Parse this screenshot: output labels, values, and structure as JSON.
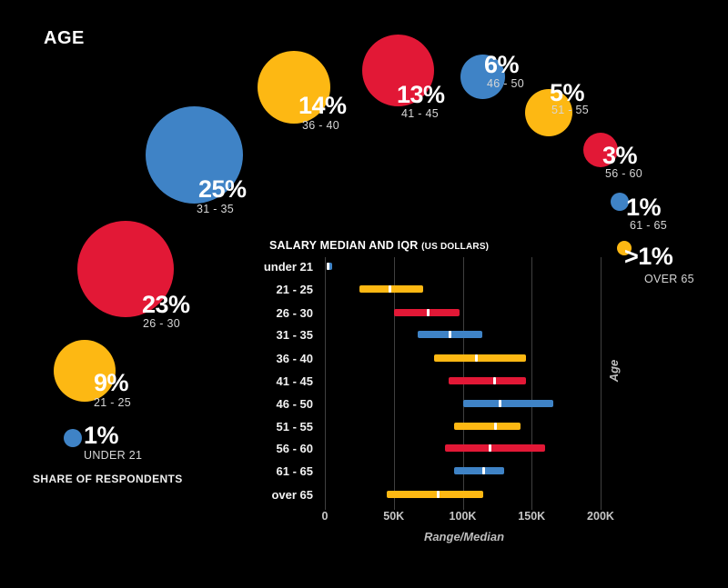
{
  "colors": {
    "background": "#000000",
    "blue": "#3F83C6",
    "yellow": "#FDB813",
    "red": "#E21836",
    "grid": "#404040",
    "median_tick": "#FFFFFF"
  },
  "chart_data": [
    {
      "type": "bubble",
      "title": "AGE",
      "note": "SHARE OF RESPONDENTS",
      "items": [
        {
          "label": "1%",
          "range": "UNDER 21",
          "value_pct": 1,
          "color": "blue"
        },
        {
          "label": "9%",
          "range": "21 - 25",
          "value_pct": 9,
          "color": "yellow"
        },
        {
          "label": "23%",
          "range": "26 - 30",
          "value_pct": 23,
          "color": "red"
        },
        {
          "label": "25%",
          "range": "31 - 35",
          "value_pct": 25,
          "color": "blue"
        },
        {
          "label": "14%",
          "range": "36 - 40",
          "value_pct": 14,
          "color": "yellow"
        },
        {
          "label": "13%",
          "range": "41 - 45",
          "value_pct": 13,
          "color": "red"
        },
        {
          "label": "6%",
          "range": "46 - 50",
          "value_pct": 6,
          "color": "blue"
        },
        {
          "label": "5%",
          "range": "51 - 55",
          "value_pct": 5,
          "color": "yellow"
        },
        {
          "label": "3%",
          "range": "56 - 60",
          "value_pct": 3,
          "color": "red"
        },
        {
          "label": "1%",
          "range": "61 - 65",
          "value_pct": 1,
          "color": "blue"
        },
        {
          "label": ">1%",
          "range": "OVER 65",
          "value_pct": 0.5,
          "color": "yellow"
        }
      ]
    },
    {
      "type": "bar",
      "subtype": "horizontal-range-median",
      "title": "SALARY MEDIAN AND IQR",
      "subtitle": "(US DOLLARS)",
      "xlabel": "Range/Median",
      "ylabel": "Age",
      "xlim": [
        0,
        200000
      ],
      "grid": true,
      "x_ticks": [
        {
          "label": "0",
          "value": 0
        },
        {
          "label": "50K",
          "value": 50000
        },
        {
          "label": "100K",
          "value": 100000
        },
        {
          "label": "150K",
          "value": 150000
        },
        {
          "label": "200K",
          "value": 200000
        }
      ],
      "rows": [
        {
          "category": "under 21",
          "q1": 1000,
          "median": 2500,
          "q3": 5000,
          "color": "blue"
        },
        {
          "category": "21 - 25",
          "q1": 25000,
          "median": 47000,
          "q3": 71000,
          "color": "yellow"
        },
        {
          "category": "26 - 30",
          "q1": 50000,
          "median": 75000,
          "q3": 98000,
          "color": "red"
        },
        {
          "category": "31 - 35",
          "q1": 67000,
          "median": 91000,
          "q3": 114000,
          "color": "blue"
        },
        {
          "category": "36 - 40",
          "q1": 79000,
          "median": 110000,
          "q3": 146000,
          "color": "yellow"
        },
        {
          "category": "41 - 45",
          "q1": 90000,
          "median": 123000,
          "q3": 146000,
          "color": "red"
        },
        {
          "category": "46 - 50",
          "q1": 100000,
          "median": 127000,
          "q3": 166000,
          "color": "blue"
        },
        {
          "category": "51 - 55",
          "q1": 94000,
          "median": 124000,
          "q3": 142000,
          "color": "yellow"
        },
        {
          "category": "56 - 60",
          "q1": 87000,
          "median": 120000,
          "q3": 160000,
          "color": "red"
        },
        {
          "category": "61 - 65",
          "q1": 94000,
          "median": 115000,
          "q3": 130000,
          "color": "blue"
        },
        {
          "category": "over 65",
          "q1": 45000,
          "median": 82000,
          "q3": 115000,
          "color": "yellow"
        }
      ]
    }
  ]
}
